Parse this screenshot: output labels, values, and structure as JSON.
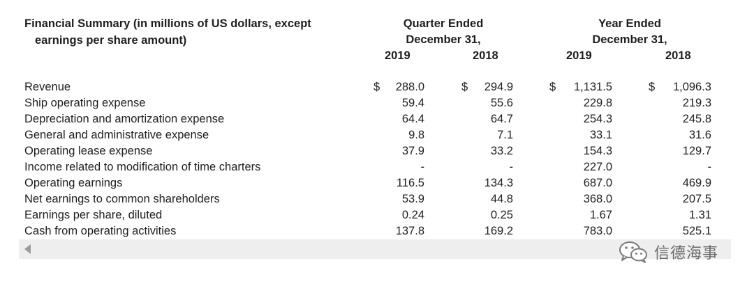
{
  "header": {
    "title_line1": "Financial Summary (in millions of US dollars, except",
    "title_line2": "earnings per share amount)",
    "quarter_line1": "Quarter Ended",
    "quarter_line2": "December 31,",
    "year_line1": "Year Ended",
    "year_line2": "December 31,",
    "col_q2019": "2019",
    "col_q2018": "2018",
    "col_y2019": "2019",
    "col_y2018": "2018"
  },
  "currency_symbol": "$",
  "rows": [
    {
      "label": "Revenue",
      "q2019": "288.0",
      "q2018": "294.9",
      "y2019": "1,131.5",
      "y2018": "1,096.3"
    },
    {
      "label": "Ship operating expense",
      "q2019": "59.4",
      "q2018": "55.6",
      "y2019": "229.8",
      "y2018": "219.3"
    },
    {
      "label": "Depreciation and amortization expense",
      "q2019": "64.4",
      "q2018": "64.7",
      "y2019": "254.3",
      "y2018": "245.8"
    },
    {
      "label": "General and administrative expense",
      "q2019": "9.8",
      "q2018": "7.1",
      "y2019": "33.1",
      "y2018": "31.6"
    },
    {
      "label": "Operating lease expense",
      "q2019": "37.9",
      "q2018": "33.2",
      "y2019": "154.3",
      "y2018": "129.7"
    },
    {
      "label": "Income related to modification of time charters",
      "q2019": "-",
      "q2018": "-",
      "y2019": "227.0",
      "y2018": "-"
    },
    {
      "label": "Operating earnings",
      "q2019": "116.5",
      "q2018": "134.3",
      "y2019": "687.0",
      "y2018": "469.9"
    },
    {
      "label": "Net earnings to common shareholders",
      "q2019": "53.9",
      "q2018": "44.8",
      "y2019": "368.0",
      "y2018": "207.5"
    },
    {
      "label": "Earnings per share, diluted",
      "q2019": "0.24",
      "q2018": "0.25",
      "y2019": "1.67",
      "y2018": "1.31"
    },
    {
      "label": "Cash from operating activities",
      "q2019": "137.8",
      "q2018": "169.2",
      "y2019": "783.0",
      "y2018": "525.1"
    }
  ],
  "watermark": {
    "text": "信德海事",
    "icon": "wechat-icon"
  },
  "scrollbar": {
    "icon": "scroll-left-arrow-icon"
  }
}
